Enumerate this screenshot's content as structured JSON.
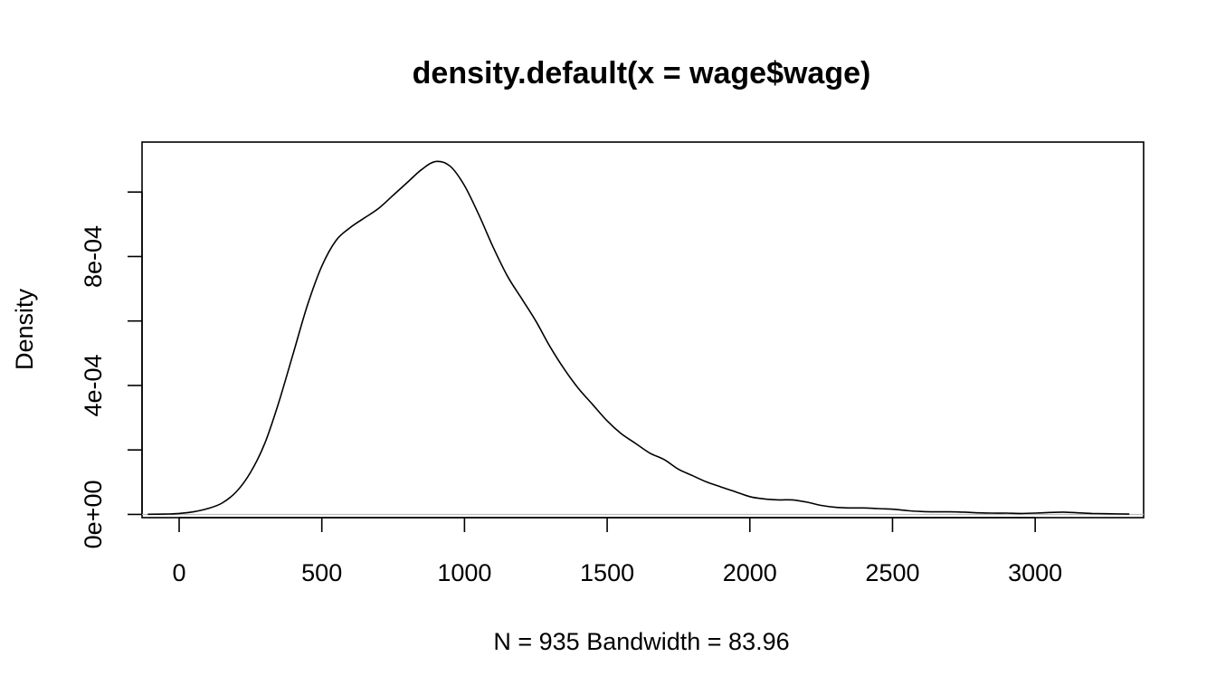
{
  "chart_data": {
    "type": "line",
    "title": "density.default(x = wage$wage)",
    "xlabel": "N = 935   Bandwidth = 83.96",
    "ylabel": "Density",
    "xlim": [
      -130,
      3380
    ],
    "ylim": [
      -1e-05,
      0.001155
    ],
    "x_ticks": [
      {
        "value": 0,
        "label": "0"
      },
      {
        "value": 500,
        "label": "500"
      },
      {
        "value": 1000,
        "label": "1000"
      },
      {
        "value": 1500,
        "label": "1500"
      },
      {
        "value": 2000,
        "label": "2000"
      },
      {
        "value": 2500,
        "label": "2500"
      },
      {
        "value": 3000,
        "label": "3000"
      }
    ],
    "y_ticks": [
      {
        "value": 0,
        "label": "0e+00"
      },
      {
        "value": 0.0002,
        "label": ""
      },
      {
        "value": 0.0004,
        "label": "4e-04"
      },
      {
        "value": 0.0006,
        "label": ""
      },
      {
        "value": 0.0008,
        "label": "8e-04"
      },
      {
        "value": 0.001,
        "label": ""
      }
    ],
    "zero_line": true,
    "grid": false,
    "series": [
      {
        "name": "density",
        "x": [
          -110,
          -50,
          0,
          50,
          100,
          150,
          200,
          250,
          300,
          350,
          400,
          450,
          500,
          550,
          600,
          650,
          700,
          750,
          800,
          850,
          900,
          950,
          1000,
          1050,
          1100,
          1150,
          1200,
          1250,
          1300,
          1350,
          1400,
          1450,
          1500,
          1550,
          1600,
          1650,
          1700,
          1750,
          1800,
          1850,
          1900,
          1950,
          2000,
          2050,
          2100,
          2150,
          2200,
          2250,
          2300,
          2350,
          2400,
          2450,
          2500,
          2550,
          2600,
          2650,
          2700,
          2750,
          2800,
          2850,
          2900,
          2950,
          3000,
          3050,
          3100,
          3150,
          3200,
          3250,
          3330
        ],
        "values": [
          5e-07,
          1e-06,
          3e-06,
          8e-06,
          1.8e-05,
          3.5e-05,
          7e-05,
          0.00013,
          0.00022,
          0.00035,
          0.0005,
          0.00065,
          0.00077,
          0.00085,
          0.00089,
          0.00092,
          0.00095,
          0.00099,
          0.00103,
          0.00107,
          0.001095,
          0.00108,
          0.00102,
          0.00093,
          0.00083,
          0.00074,
          0.00067,
          0.0006,
          0.00052,
          0.00045,
          0.00039,
          0.00034,
          0.00029,
          0.00025,
          0.00022,
          0.00019,
          0.00017,
          0.00014,
          0.00012,
          0.0001,
          8.5e-05,
          7e-05,
          5.5e-05,
          4.8e-05,
          4.5e-05,
          4.5e-05,
          3.8e-05,
          2.8e-05,
          2.2e-05,
          2e-05,
          2e-05,
          1.8e-05,
          1.6e-05,
          1.2e-05,
          9e-06,
          8e-06,
          8e-06,
          7e-06,
          5e-06,
          4e-06,
          4e-06,
          3e-06,
          4e-06,
          6e-06,
          7e-06,
          5e-06,
          3e-06,
          2e-06,
          1e-06
        ]
      }
    ]
  }
}
